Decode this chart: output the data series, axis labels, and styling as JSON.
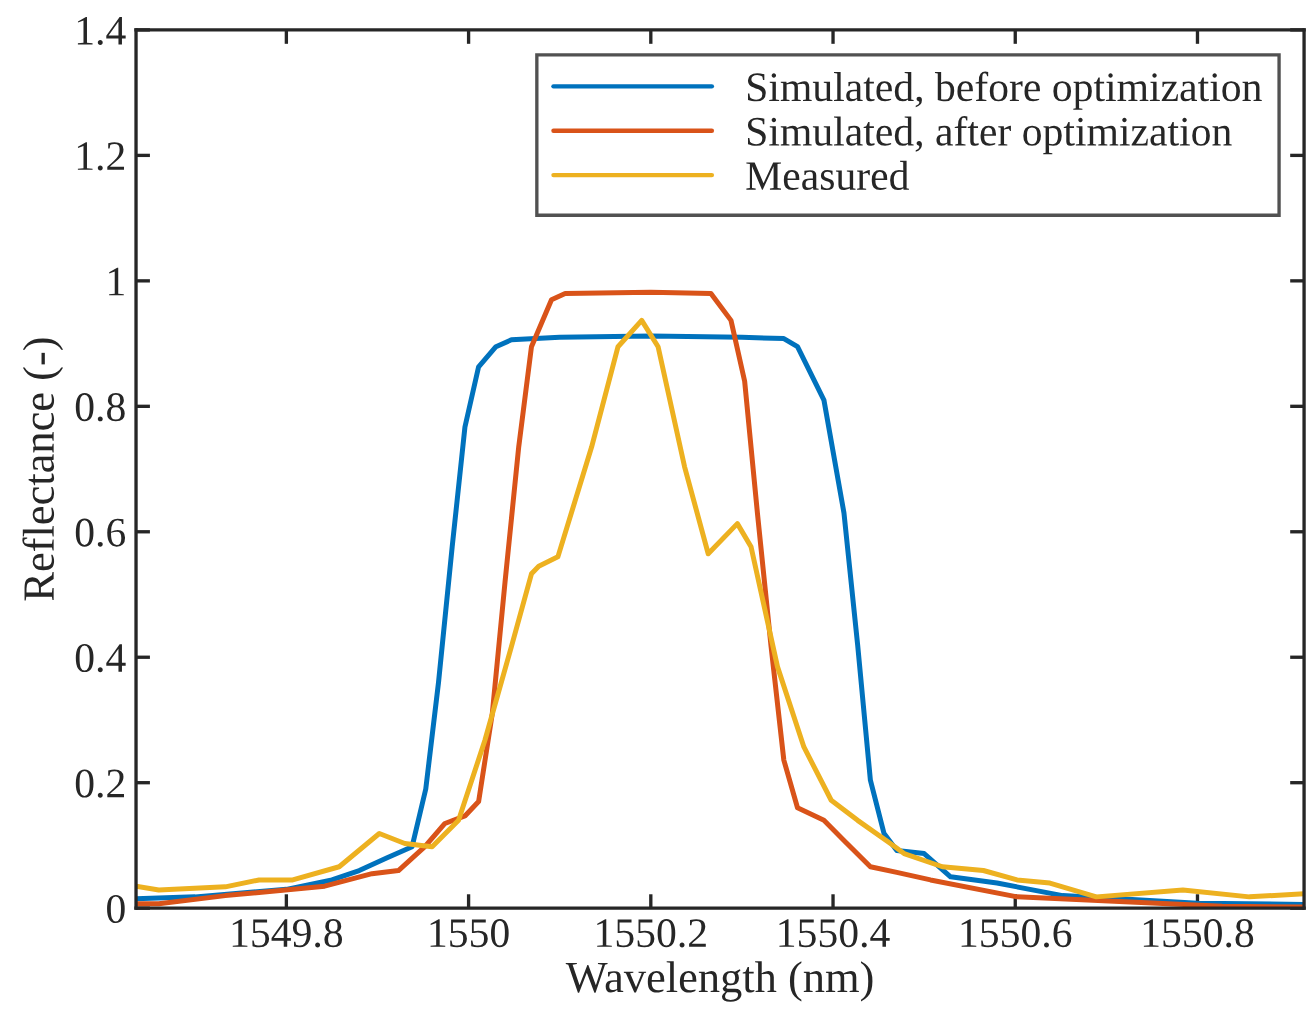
{
  "chart_data": {
    "type": "line",
    "xlabel": "Wavelength (nm)",
    "ylabel": "Reflectance (-)",
    "xlim": [
      1549.635,
      1550.917
    ],
    "ylim": [
      0,
      1.4
    ],
    "xticks": [
      1549.8,
      1550,
      1550.2,
      1550.4,
      1550.6,
      1550.8
    ],
    "yticks": [
      0,
      0.2,
      0.4,
      0.6,
      0.8,
      1,
      1.2,
      1.4
    ],
    "grid": false,
    "legend": "top right",
    "line_style": "solid",
    "marker": "none",
    "series": [
      {
        "name": "Simulated, before optimization",
        "color": "#0072bd",
        "x": [
          1549.635,
          1549.7,
          1549.8,
          1549.85,
          1549.88,
          1549.91,
          1549.938,
          1549.953,
          1549.967,
          1549.982,
          1549.996,
          1550.011,
          1550.03,
          1550.047,
          1550.1,
          1550.2,
          1550.3,
          1550.346,
          1550.361,
          1550.39,
          1550.412,
          1550.427,
          1550.441,
          1550.456,
          1550.47,
          1550.5,
          1550.529,
          1550.58,
          1550.652,
          1550.8,
          1550.917
        ],
        "values": [
          0.015,
          0.018,
          0.03,
          0.045,
          0.06,
          0.08,
          0.098,
          0.19,
          0.36,
          0.576,
          0.767,
          0.863,
          0.895,
          0.906,
          0.91,
          0.912,
          0.91,
          0.908,
          0.895,
          0.81,
          0.63,
          0.42,
          0.204,
          0.119,
          0.092,
          0.087,
          0.05,
          0.04,
          0.02,
          0.008,
          0.006
        ]
      },
      {
        "name": "Simulated, after optimization",
        "color": "#d95319",
        "x": [
          1549.635,
          1549.66,
          1549.733,
          1549.842,
          1549.894,
          1549.923,
          1549.952,
          1549.974,
          1549.996,
          1550.011,
          1550.026,
          1550.04,
          1550.055,
          1550.069,
          1550.091,
          1550.106,
          1550.2,
          1550.266,
          1550.288,
          1550.303,
          1550.317,
          1550.332,
          1550.346,
          1550.361,
          1550.39,
          1550.412,
          1550.441,
          1550.47,
          1550.507,
          1550.602,
          1550.827,
          1550.917
        ],
        "values": [
          0.007,
          0.007,
          0.02,
          0.035,
          0.055,
          0.06,
          0.098,
          0.135,
          0.147,
          0.17,
          0.31,
          0.52,
          0.735,
          0.895,
          0.97,
          0.98,
          0.982,
          0.98,
          0.937,
          0.84,
          0.63,
          0.417,
          0.236,
          0.16,
          0.14,
          0.108,
          0.066,
          0.057,
          0.045,
          0.018,
          0.003,
          0.002
        ]
      },
      {
        "name": "Measured",
        "color": "#edb120",
        "x": [
          1549.635,
          1549.66,
          1549.733,
          1549.77,
          1549.807,
          1549.858,
          1549.902,
          1549.93,
          1549.96,
          1549.989,
          1550.018,
          1550.047,
          1550.069,
          1550.077,
          1550.098,
          1550.135,
          1550.164,
          1550.19,
          1550.208,
          1550.237,
          1550.263,
          1550.295,
          1550.31,
          1550.339,
          1550.368,
          1550.398,
          1550.427,
          1550.463,
          1550.478,
          1550.52,
          1550.565,
          1550.602,
          1550.638,
          1550.689,
          1550.784,
          1550.857,
          1550.917
        ],
        "values": [
          0.035,
          0.029,
          0.034,
          0.045,
          0.045,
          0.066,
          0.119,
          0.103,
          0.098,
          0.14,
          0.268,
          0.417,
          0.533,
          0.545,
          0.56,
          0.735,
          0.895,
          0.937,
          0.895,
          0.704,
          0.565,
          0.613,
          0.576,
          0.385,
          0.257,
          0.172,
          0.14,
          0.103,
          0.087,
          0.066,
          0.06,
          0.045,
          0.04,
          0.018,
          0.029,
          0.018,
          0.023
        ]
      }
    ]
  }
}
